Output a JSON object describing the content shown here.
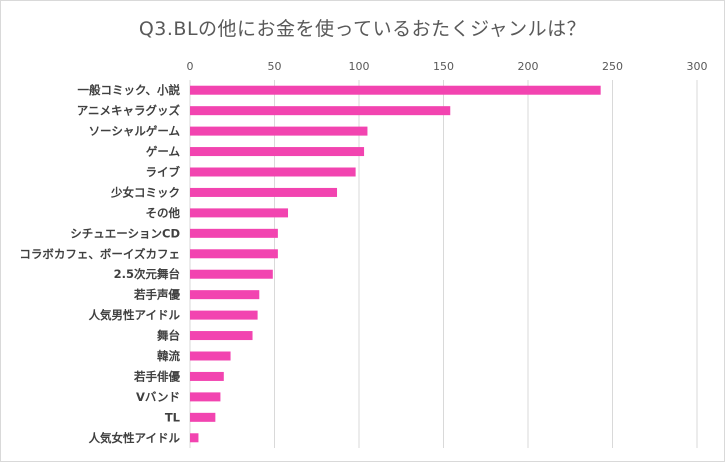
{
  "chart_data": {
    "type": "bar",
    "orientation": "horizontal",
    "title": "Q3.BLの他にお金を使っているおたくジャンルは？",
    "xlim": [
      0,
      300
    ],
    "ticks": [
      0,
      50,
      100,
      150,
      200,
      250,
      300
    ],
    "grid": true,
    "categories": [
      "一般コミック、小説",
      "アニメキャラグッズ",
      "ソーシャルゲーム",
      "ゲーム",
      "ライブ",
      "少女コミック",
      "その他",
      "シチュエーションCD",
      "コラボカフェ、ボーイズカフェ",
      "2.5次元舞台",
      "若手声優",
      "人気男性アイドル",
      "舞台",
      "韓流",
      "若手俳優",
      "Vバンド",
      "TL",
      "人気女性アイドル"
    ],
    "values": [
      243,
      154,
      105,
      103,
      98,
      87,
      58,
      52,
      52,
      49,
      41,
      40,
      37,
      24,
      20,
      18,
      15,
      5
    ],
    "colors": {
      "bar": "#f244b0",
      "grid": "#d9d9d9",
      "text": "#595959"
    }
  }
}
